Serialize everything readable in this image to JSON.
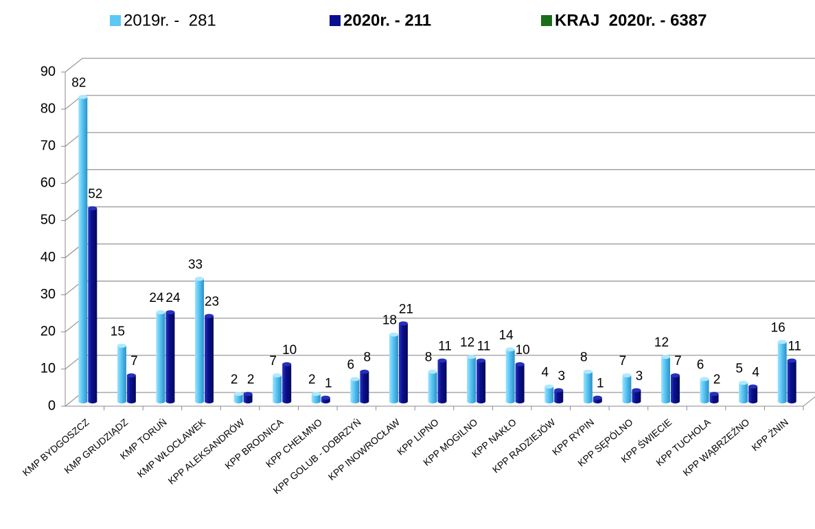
{
  "chart_data": {
    "type": "bar",
    "categories": [
      "KMP BYDGOSZCZ",
      "KMP GRUDZIĄDZ",
      "KMP TORUŃ",
      "KMP WŁOCŁAWEK",
      "KPP ALEKSANDRÓW",
      "KPP BRODNICA",
      "KPP CHEŁMNO",
      "KPP GOLUB - DOBRZYŃ",
      "KPP INOWROCŁAW",
      "KPP LIPNO",
      "KPP MOGILNO",
      "KPP NAKŁO",
      "KPP RADZIEJÓW",
      "KPP RYPIN",
      "KPP SĘPÓLNO",
      "KPP ŚWIECIE",
      "KPP TUCHOLA",
      "KPP WĄBRZEŹNO",
      "KPP ŻNIN"
    ],
    "series": [
      {
        "name": "2019r. -  281",
        "color": "#5bc8f5",
        "values": [
          82,
          15,
          24,
          33,
          2,
          7,
          2,
          6,
          18,
          8,
          12,
          14,
          4,
          8,
          7,
          12,
          6,
          5,
          16
        ]
      },
      {
        "name": "2020r. - 211",
        "color": "#0a0f8f",
        "values": [
          52,
          7,
          24,
          23,
          2,
          10,
          1,
          8,
          21,
          11,
          11,
          10,
          3,
          1,
          3,
          7,
          2,
          4,
          11
        ]
      }
    ],
    "extra_legend": {
      "name": "KRAJ  2020r. - 6387",
      "color": "#1a6e1a"
    },
    "ylim": [
      0,
      90
    ],
    "yticks": [
      0,
      10,
      20,
      30,
      40,
      50,
      60,
      70,
      80,
      90
    ],
    "grid": true
  }
}
